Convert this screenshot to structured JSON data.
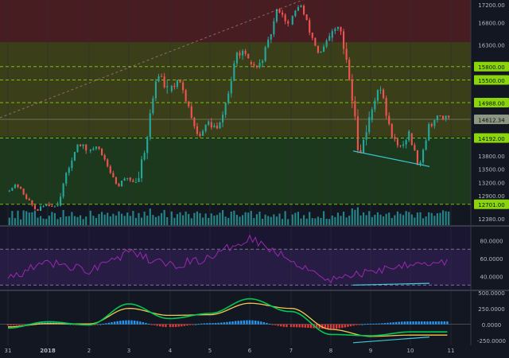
{
  "colors": {
    "background": "#131722",
    "axis_text": "#b2b5be",
    "up_candle": "#26a69a",
    "down_candle": "#ef5350",
    "volume": "#2bb5b0",
    "rsi_line": "#9c27b0",
    "macd_line": "#00c853",
    "signal_line": "#f2c94c",
    "hist_pos": "#2196f3",
    "hist_neg": "#e53935",
    "trendline": "#3ec9d6",
    "level_line": "#8bd60a",
    "zone_red": "#4a1d22",
    "zone_olive": "#3c4019",
    "zone_green": "#1c3a1d"
  },
  "chart_data": [
    {
      "type": "candlestick",
      "pane": "price",
      "x_tick_labels": [
        "31",
        "2018",
        "2",
        "3",
        "4",
        "5",
        "6",
        "7",
        "8",
        "9",
        "10",
        "11"
      ],
      "y_tick_labels": [
        "17200.00",
        "16800.00",
        "16300.00",
        "15800.00",
        "15500.00",
        "14988.00",
        "14612.34",
        "14192.00",
        "13800.00",
        "13500.00",
        "13200.00",
        "12900.00",
        "12701.00",
        "12380.00"
      ],
      "highlighted_levels": [
        "15800.00",
        "15500.00",
        "14988.00",
        "14192.00",
        "12701.00"
      ],
      "last_price": "14612.34",
      "ylim": [
        12230,
        17300
      ],
      "zones": [
        {
          "from": 16350,
          "to": 17300,
          "color": "red"
        },
        {
          "from": 14220,
          "to": 16350,
          "color": "olive"
        },
        {
          "from": 12701,
          "to": 14220,
          "color": "green"
        }
      ],
      "ohlc_days": [
        {
          "day": "31",
          "open": 13000,
          "high": 13150,
          "low": 12550,
          "close": 12700
        },
        {
          "day": "2018",
          "open": 12700,
          "high": 14050,
          "low": 12650,
          "close": 13950
        },
        {
          "day": "2",
          "open": 13900,
          "high": 14000,
          "low": 13100,
          "close": 13300
        },
        {
          "day": "3",
          "open": 13300,
          "high": 15700,
          "low": 13200,
          "close": 15250
        },
        {
          "day": "4",
          "open": 15250,
          "high": 15500,
          "low": 14200,
          "close": 14550
        },
        {
          "day": "5",
          "open": 14550,
          "high": 16200,
          "low": 14350,
          "close": 15900
        },
        {
          "day": "6",
          "open": 15900,
          "high": 17150,
          "low": 15750,
          "close": 16750
        },
        {
          "day": "7",
          "open": 16750,
          "high": 17250,
          "low": 16050,
          "close": 16450
        },
        {
          "day": "8",
          "open": 16450,
          "high": 16700,
          "low": 13850,
          "close": 14600
        },
        {
          "day": "9",
          "open": 14600,
          "high": 15450,
          "low": 13900,
          "close": 14300
        },
        {
          "day": "10",
          "open": 14300,
          "high": 14700,
          "low": 13550,
          "close": 14612.34
        }
      ],
      "trendline": [
        {
          "x": "8",
          "y": 13900
        },
        {
          "x": "10",
          "y": 13550
        }
      ]
    },
    {
      "type": "line",
      "pane": "rsi",
      "y_tick_labels": [
        "80.0000",
        "60.0000",
        "40.0000"
      ],
      "ylim": [
        25,
        95
      ],
      "bands": [
        30,
        70
      ],
      "values_by_day": [
        {
          "day": "31",
          "value": 38
        },
        {
          "day": "2018",
          "value": 55
        },
        {
          "day": "2",
          "value": 47
        },
        {
          "day": "3",
          "value": 66
        },
        {
          "day": "4",
          "value": 52
        },
        {
          "day": "5",
          "value": 60
        },
        {
          "day": "6",
          "value": 84
        },
        {
          "day": "7",
          "value": 58
        },
        {
          "day": "8",
          "value": 36
        },
        {
          "day": "9",
          "value": 45
        },
        {
          "day": "10",
          "value": 55
        }
      ],
      "divergence_line": [
        {
          "x": "8",
          "y": 30
        },
        {
          "x": "10",
          "y": 32
        }
      ]
    },
    {
      "type": "macd",
      "pane": "macd",
      "y_tick_labels": [
        "500.0000",
        "250.0000",
        "0.0000",
        "-250.0000"
      ],
      "ylim": [
        -330,
        520
      ],
      "macd_by_day": [
        {
          "day": "31",
          "value": -60
        },
        {
          "day": "2018",
          "value": 40
        },
        {
          "day": "2",
          "value": -10
        },
        {
          "day": "3",
          "value": 320
        },
        {
          "day": "4",
          "value": 90
        },
        {
          "day": "5",
          "value": 170
        },
        {
          "day": "6",
          "value": 400
        },
        {
          "day": "7",
          "value": 200
        },
        {
          "day": "8",
          "value": -160
        },
        {
          "day": "9",
          "value": -180
        },
        {
          "day": "10",
          "value": -120
        }
      ],
      "signal_by_day": [
        {
          "day": "31",
          "value": -40
        },
        {
          "day": "2018",
          "value": 10
        },
        {
          "day": "2",
          "value": 5
        },
        {
          "day": "3",
          "value": 250
        },
        {
          "day": "4",
          "value": 140
        },
        {
          "day": "5",
          "value": 150
        },
        {
          "day": "6",
          "value": 330
        },
        {
          "day": "7",
          "value": 250
        },
        {
          "day": "8",
          "value": -80
        },
        {
          "day": "9",
          "value": -190
        },
        {
          "day": "10",
          "value": -170
        }
      ],
      "divergence_line": [
        {
          "x": "8",
          "y": -290
        },
        {
          "x": "10",
          "y": -200
        }
      ]
    }
  ]
}
